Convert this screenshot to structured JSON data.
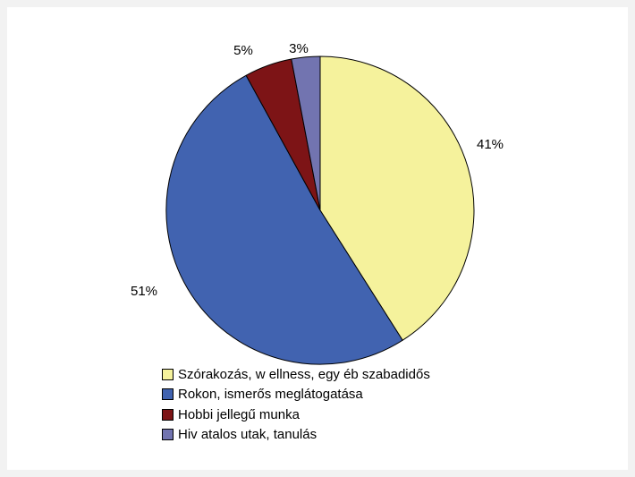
{
  "chart_data": {
    "type": "pie",
    "slices": [
      {
        "label": "Szórakozás, wellness, egyéb szabadidős",
        "legend_text": "Szórakozás, w ellness, egy éb szabadidős",
        "value": 41,
        "value_label": "41%",
        "color": "#f5f29c"
      },
      {
        "label": "Rokon, ismerős meglátogatása",
        "legend_text": "Rokon, ismerős meglátogatása",
        "value": 51,
        "value_label": "51%",
        "color": "#4163b0"
      },
      {
        "label": "Hobbi jellegű munka",
        "legend_text": "Hobbi jellegű munka",
        "value": 5,
        "value_label": "5%",
        "color": "#7d1416"
      },
      {
        "label": "Hivatalos utak, tanulás",
        "legend_text": "Hiv atalos utak, tanulás",
        "value": 3,
        "value_label": "3%",
        "color": "#7274b0"
      }
    ],
    "start_angle": "12 o'clock",
    "direction": "clockwise",
    "legend_position": "bottom"
  }
}
